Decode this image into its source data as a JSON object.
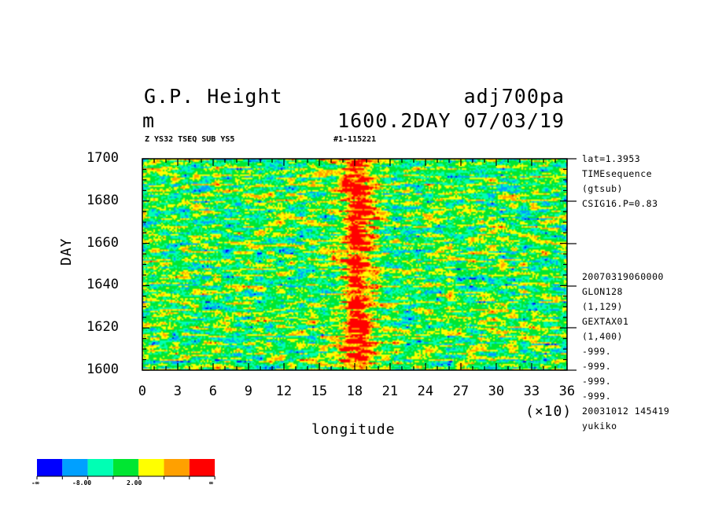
{
  "header": {
    "title_left": "G.P. Height",
    "title_right": "adj700pa",
    "units": "m",
    "time_label": "1600.2DAY 07/03/19",
    "sub_left": "Z YS32 TSEQ SUB YS5",
    "sub_right": "#1-115221"
  },
  "side_info": [
    "lat=1.3953",
    "TIMEsequence",
    "(gtsub)",
    "CSIG16.P=0.83",
    "20070319060000",
    "GLON128",
    "(1,129)",
    "GEXTAX01",
    "(1,400)",
    "-999.",
    "-999.",
    "-999.",
    "-999.",
    "20031012 145419",
    "yukiko"
  ],
  "chart_data": {
    "type": "heatmap",
    "title": "G.P. Height",
    "xlabel": "longitude",
    "ylabel": "DAY",
    "x_multiplier": "(×10)",
    "xlim": [
      0,
      36
    ],
    "ylim": [
      1600,
      1700
    ],
    "x_ticks": [
      "0",
      "3",
      "6",
      "9",
      "12",
      "15",
      "18",
      "21",
      "24",
      "27",
      "30",
      "33",
      "36"
    ],
    "y_ticks": [
      "1600",
      "1620",
      "1640",
      "1660",
      "1680",
      "1700"
    ],
    "high_anomaly_band_x": [
      16.5,
      20
    ],
    "color_levels": [
      {
        "color": "#0000ff"
      },
      {
        "color": "#00a0ff"
      },
      {
        "color": "#00ffb4"
      },
      {
        "color": "#00e632"
      },
      {
        "color": "#ffff00"
      },
      {
        "color": "#ffa000"
      },
      {
        "color": "#ff0000"
      }
    ],
    "colorbar_labels": [
      "-∞",
      "-8.00",
      "2.00",
      "∞"
    ]
  }
}
